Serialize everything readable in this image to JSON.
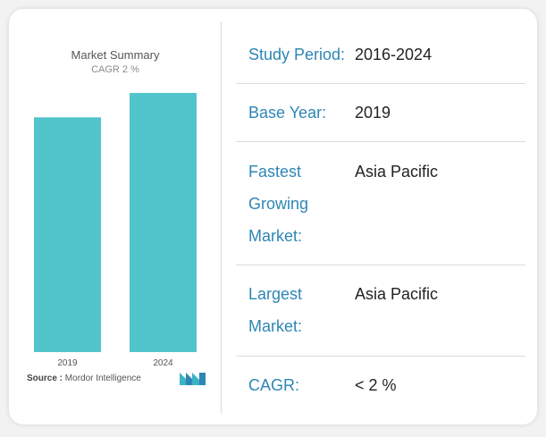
{
  "chart_title": "Market Summary",
  "chart_subtitle": "CAGR 2 %",
  "source_label": "Source :",
  "source_name": "Mordor Intelligence",
  "logo_name": "mordor-intelligence-logo",
  "colors": {
    "bar": "#52c4cb",
    "label": "#2e86b5",
    "logo": "#3bb3c3"
  },
  "chart_data": {
    "type": "bar",
    "categories": [
      "2019",
      "2024"
    ],
    "values": [
      100,
      110.4
    ],
    "title": "Market Summary",
    "subtitle": "CAGR 2 %",
    "xlabel": "",
    "ylabel": "",
    "ylim": [
      0,
      110.4
    ],
    "grid": false,
    "legend": "none"
  },
  "summary": [
    {
      "label": "Study Period:",
      "value": "2016-2024"
    },
    {
      "label": "Base Year:",
      "value": "2019"
    },
    {
      "label": "Fastest Growing Market:",
      "value": "Asia Pacific"
    },
    {
      "label": "Largest Market:",
      "value": "Asia Pacific"
    },
    {
      "label": "CAGR:",
      "value": "< 2 %"
    }
  ]
}
